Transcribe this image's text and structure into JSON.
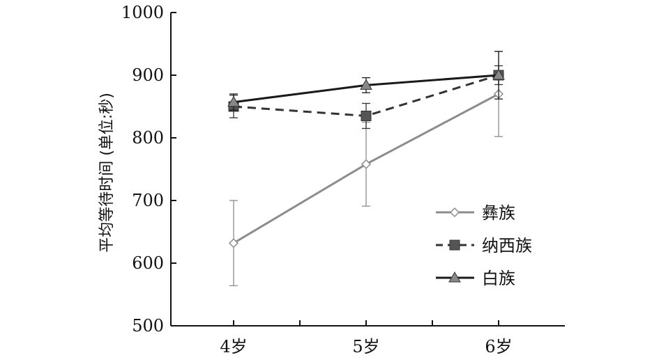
{
  "chart_data": {
    "type": "line",
    "title": "",
    "xlabel": "",
    "ylabel": "平均等待时间 (单位:秒)",
    "categories": [
      "4岁",
      "5岁",
      "6岁"
    ],
    "ylim": [
      500,
      1000
    ],
    "yticks": [
      500,
      600,
      700,
      800,
      900,
      1000
    ],
    "grid": false,
    "legend_position": "bottom-right",
    "series": [
      {
        "name": "彝族",
        "values": [
          632,
          758,
          870
        ],
        "error": [
          68,
          67,
          68
        ],
        "color": "#8c8c8c",
        "line_style": "solid",
        "marker": "diamond-open"
      },
      {
        "name": "纳西族",
        "values": [
          850,
          835,
          900
        ],
        "error": [
          18,
          20,
          15
        ],
        "color": "#333333",
        "line_style": "dashed",
        "marker": "square"
      },
      {
        "name": "白族",
        "values": [
          857,
          884,
          900
        ],
        "error": [
          13,
          12,
          38
        ],
        "color": "#1a1a1a",
        "line_style": "solid",
        "marker": "triangle"
      }
    ]
  }
}
